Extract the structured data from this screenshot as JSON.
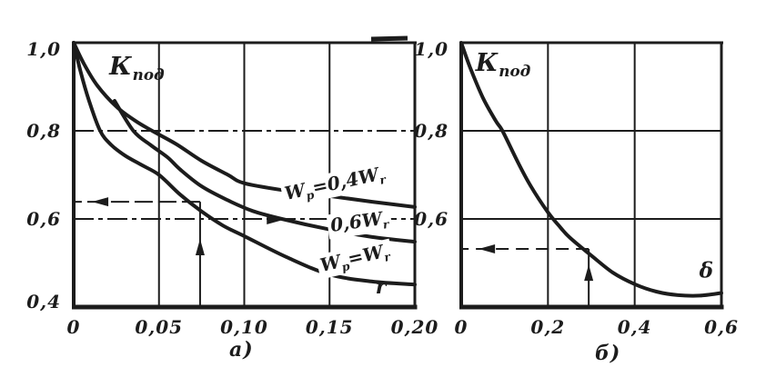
{
  "figure": {
    "background": "#ffffff",
    "ink_color": "#1c1c1c",
    "sub_labels": [
      {
        "text": "а)"
      },
      {
        "text": "б)"
      }
    ]
  },
  "chart_data": [
    {
      "id": "a",
      "type": "line",
      "title": "Кпод",
      "xlabel": "r",
      "ylabel": "Кпод",
      "xlim": [
        0,
        0.2
      ],
      "ylim": [
        0.4,
        1.0
      ],
      "grid": true,
      "x_gridlines": [
        0.05,
        0.1,
        0.15
      ],
      "y_gridlines": [
        0.8,
        0.6
      ],
      "y_grid_dash": "22 5 5 5",
      "x_ticks": [
        {
          "v": 0,
          "label": "0"
        },
        {
          "v": 0.05,
          "label": "0,05"
        },
        {
          "v": 0.1,
          "label": "0,10"
        },
        {
          "v": 0.15,
          "label": "0,15"
        },
        {
          "v": 0.2,
          "label": "0,20"
        }
      ],
      "y_ticks": [
        {
          "v": 1.0,
          "label": "1,0"
        },
        {
          "v": 0.8,
          "label": "0,8"
        },
        {
          "v": 0.6,
          "label": "0,6"
        },
        {
          "v": 0.4,
          "label": "0,4"
        }
      ],
      "series": [
        {
          "name": "Wp=0,4Wr",
          "points": [
            [
              0,
              1.0
            ],
            [
              0.006,
              0.952
            ],
            [
              0.014,
              0.902
            ],
            [
              0.025,
              0.855
            ],
            [
              0.036,
              0.823
            ],
            [
              0.046,
              0.8
            ],
            [
              0.06,
              0.77
            ],
            [
              0.075,
              0.732
            ],
            [
              0.09,
              0.701
            ],
            [
              0.1,
              0.681
            ],
            [
              0.125,
              0.664
            ],
            [
              0.15,
              0.652
            ],
            [
              0.175,
              0.639
            ],
            [
              0.2,
              0.627
            ]
          ]
        },
        {
          "name": "0,6Wr",
          "points": [
            [
              0.024,
              0.868
            ],
            [
              0.035,
              0.8
            ],
            [
              0.045,
              0.768
            ],
            [
              0.055,
              0.74
            ],
            [
              0.0625,
              0.712
            ],
            [
              0.075,
              0.674
            ],
            [
              0.09,
              0.643
            ],
            [
              0.105,
              0.618
            ],
            [
              0.122,
              0.6
            ],
            [
              0.15,
              0.576
            ],
            [
              0.175,
              0.559
            ],
            [
              0.2,
              0.548
            ]
          ]
        },
        {
          "name": "Wp=Wr",
          "points": [
            [
              0,
              1.0
            ],
            [
              0.004,
              0.935
            ],
            [
              0.009,
              0.868
            ],
            [
              0.0155,
              0.8
            ],
            [
              0.022,
              0.768
            ],
            [
              0.03,
              0.744
            ],
            [
              0.04,
              0.722
            ],
            [
              0.05,
              0.7
            ],
            [
              0.0625,
              0.655
            ],
            [
              0.075,
              0.617
            ],
            [
              0.0875,
              0.585
            ],
            [
              0.1,
              0.561
            ],
            [
              0.125,
              0.513
            ],
            [
              0.15,
              0.474
            ],
            [
              0.175,
              0.458
            ],
            [
              0.2,
              0.451
            ]
          ]
        }
      ],
      "annotations": [
        {
          "kind": "title",
          "segments": [
            {
              "t": "К"
            },
            {
              "t": "под",
              "sub": true
            }
          ],
          "x": 0.037,
          "y": 0.942,
          "rot": 0,
          "size": 27
        },
        {
          "kind": "curve-label",
          "segments": [
            {
              "t": "W"
            },
            {
              "t": "p",
              "sub": true
            },
            {
              "t": "=0,4W"
            },
            {
              "t": "r",
              "sub": true
            }
          ],
          "x": 0.153,
          "y": 0.678,
          "rot": -12,
          "size": 20
        },
        {
          "kind": "curve-label",
          "segments": [
            {
              "t": "0,6W"
            },
            {
              "t": "r",
              "sub": true
            }
          ],
          "x": 0.1675,
          "y": 0.592,
          "rot": -8,
          "size": 20
        },
        {
          "kind": "curve-label",
          "segments": [
            {
              "t": "W"
            },
            {
              "t": "p",
              "sub": true
            },
            {
              "t": "=W"
            },
            {
              "t": "r",
              "sub": true
            }
          ],
          "x": 0.1648,
          "y": 0.509,
          "rot": -13,
          "size": 20
        },
        {
          "kind": "axis-symbol",
          "segments": [
            {
              "t": "r"
            }
          ],
          "x": 0.18,
          "y": 0.445,
          "rot": 0,
          "size": 22
        }
      ],
      "guides": [
        {
          "x1": 0.0741,
          "y1": 0.639,
          "x2": 0,
          "y2": 0.639,
          "dash": "20 6"
        },
        {
          "x1": 0.0741,
          "y1": 0.4,
          "x2": 0.0741,
          "y2": 0.639
        }
      ],
      "arrows": [
        {
          "x": 0.0155,
          "y": 0.639,
          "dir": "left"
        },
        {
          "x": 0.0741,
          "y": 0.536,
          "dir": "up"
        },
        {
          "x": 0.118,
          "y": 0.598,
          "dir": "right"
        }
      ]
    },
    {
      "id": "b",
      "type": "line",
      "title": "Кпод",
      "xlabel": "δ",
      "ylabel": "Кпод",
      "xlim": [
        0,
        0.6
      ],
      "ylim": [
        0.4,
        1.0
      ],
      "grid": true,
      "x_gridlines": [
        0.2,
        0.4
      ],
      "y_gridlines": [
        0.8,
        0.6
      ],
      "x_ticks": [
        {
          "v": 0,
          "label": "0"
        },
        {
          "v": 0.2,
          "label": "0,2"
        },
        {
          "v": 0.4,
          "label": "0,4"
        },
        {
          "v": 0.6,
          "label": "0,6"
        }
      ],
      "y_ticks": [
        {
          "v": 1.0,
          "label": "1,0"
        },
        {
          "v": 0.8,
          "label": "0,8"
        },
        {
          "v": 0.6,
          "label": "0,6"
        }
      ],
      "series": [
        {
          "name": "Кпод(δ)",
          "points": [
            [
              0,
              1.0
            ],
            [
              0.02,
              0.945
            ],
            [
              0.05,
              0.875
            ],
            [
              0.08,
              0.822
            ],
            [
              0.095,
              0.8
            ],
            [
              0.13,
              0.73
            ],
            [
              0.16,
              0.675
            ],
            [
              0.2,
              0.615
            ],
            [
              0.225,
              0.585
            ],
            [
              0.25,
              0.558
            ],
            [
              0.3,
              0.517
            ],
            [
              0.35,
              0.478
            ],
            [
              0.4,
              0.452
            ],
            [
              0.45,
              0.435
            ],
            [
              0.5,
              0.427
            ],
            [
              0.55,
              0.426
            ],
            [
              0.6,
              0.432
            ]
          ]
        }
      ],
      "annotations": [
        {
          "kind": "title",
          "segments": [
            {
              "t": "К"
            },
            {
              "t": "под",
              "sub": true
            }
          ],
          "x": 0.0965,
          "y": 0.9505,
          "rot": 0,
          "size": 27
        },
        {
          "kind": "axis-symbol",
          "segments": [
            {
              "t": "δ"
            }
          ],
          "x": 0.565,
          "y": 0.483,
          "rot": 0,
          "size": 23
        }
      ],
      "guides": [
        {
          "x1": 0.294,
          "y1": 0.532,
          "x2": 0,
          "y2": 0.532,
          "dash": "14 8"
        },
        {
          "x1": 0.294,
          "y1": 0.4,
          "x2": 0.294,
          "y2": 0.532
        }
      ],
      "arrows": [
        {
          "x": 0.059,
          "y": 0.532,
          "dir": "left"
        },
        {
          "x": 0.294,
          "y": 0.478,
          "dir": "up"
        }
      ]
    }
  ]
}
